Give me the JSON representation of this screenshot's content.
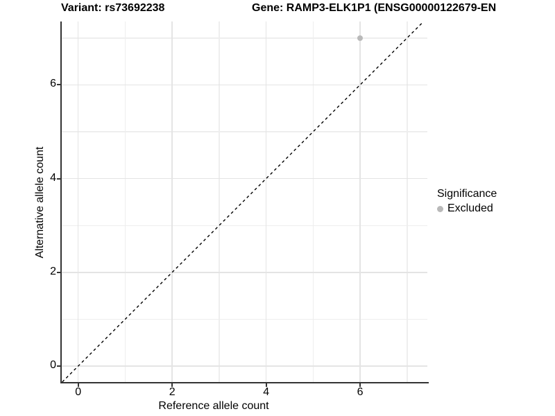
{
  "chart_data": {
    "type": "scatter",
    "title_left": "Variant: rs73692238",
    "title_right": "Gene: RAMP3-ELK1P1 (ENSG00000122679-EN",
    "xlabel": "Reference allele count",
    "ylabel": "Alternative allele count",
    "xlim": [
      -0.35,
      7.43
    ],
    "ylim": [
      -0.34,
      7.35
    ],
    "x_major_ticks": [
      0,
      2,
      4,
      6
    ],
    "x_minor_ticks": [
      1,
      3,
      5,
      7
    ],
    "y_major_ticks": [
      0,
      2,
      4,
      6
    ],
    "y_minor_ticks": [
      1,
      3,
      5,
      7
    ],
    "grid": true,
    "reference_line": {
      "type": "identity-diagonal",
      "style": "dashed",
      "color": "#000000"
    },
    "series": [
      {
        "name": "Excluded",
        "color": "#b9b9b9",
        "points": [
          {
            "x": 6,
            "y": 7
          }
        ]
      }
    ],
    "legend": {
      "title": "Significance",
      "position": "right",
      "items": [
        {
          "label": "Excluded",
          "color": "#b9b9b9"
        }
      ]
    }
  },
  "colors": {
    "background": "#ffffff",
    "grid_major": "#e4e4e4",
    "grid_minor": "#eeeeee",
    "axis_line": "#333333",
    "text": "#000000"
  }
}
